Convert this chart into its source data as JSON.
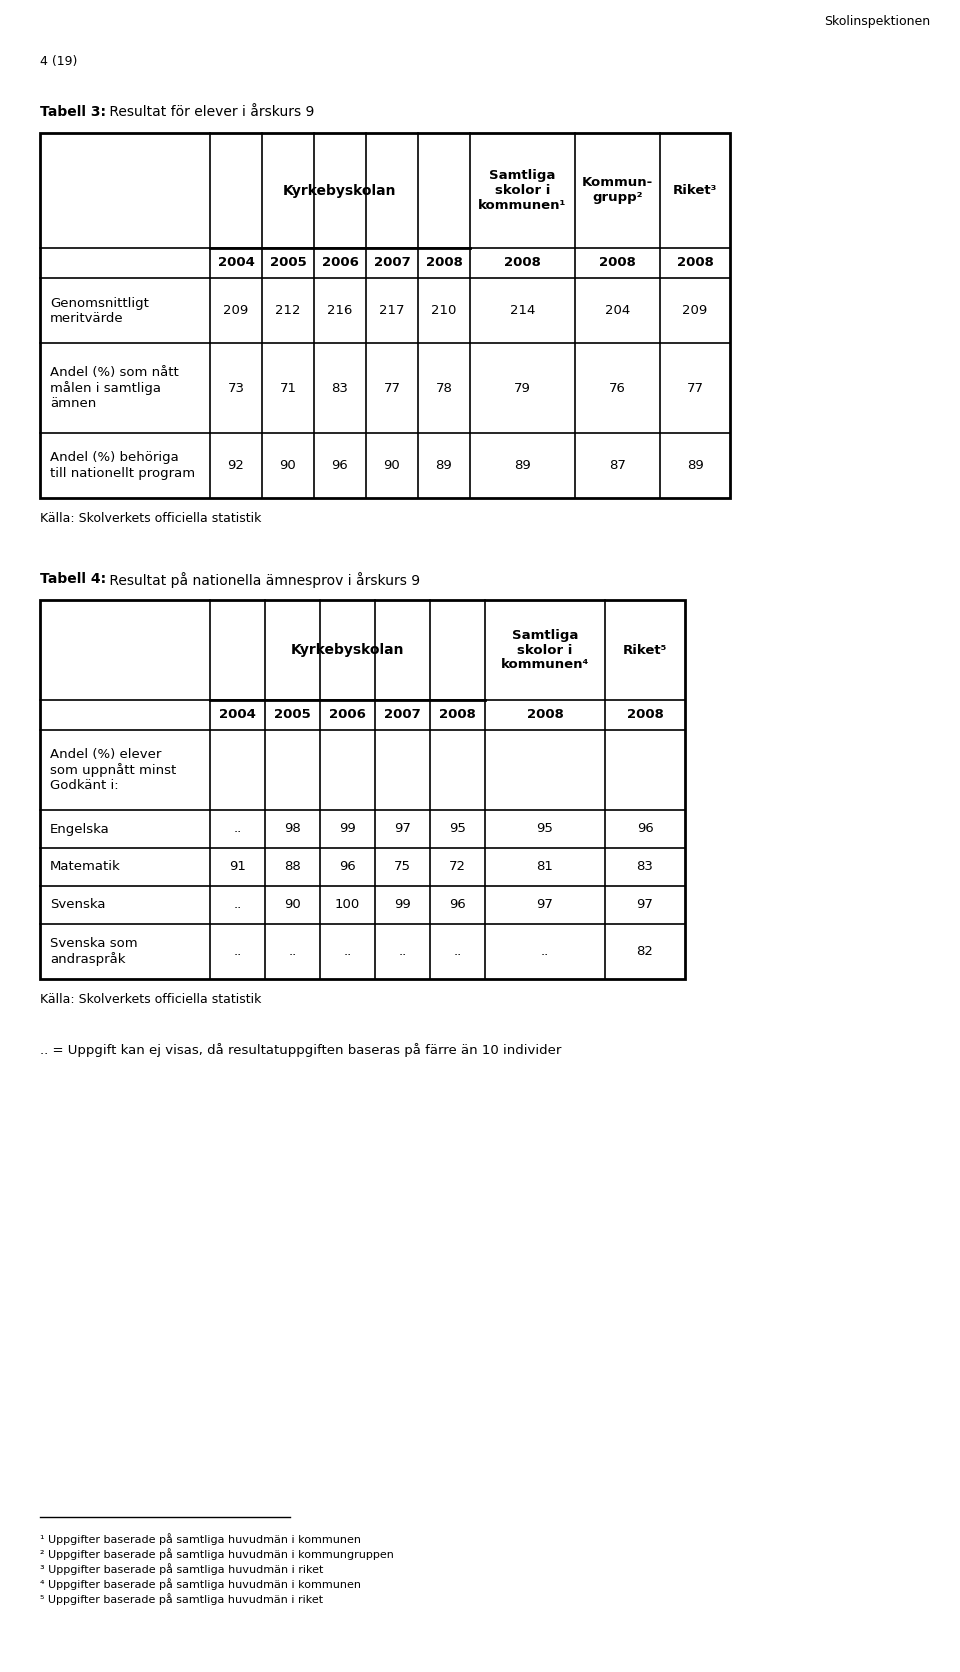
{
  "page_label": "4 (19)",
  "skolinspektionen": "Skolinspektionen",
  "table3_title_bold": "Tabell 3:",
  "table3_title_rest": " Resultat för elever i årskurs 9",
  "table3_rows": [
    {
      "label": "Genomsnittligt\nmeritvärde",
      "values": [
        "209",
        "212",
        "216",
        "217",
        "210",
        "214",
        "204",
        "209"
      ]
    },
    {
      "label": "Andel (%) som nått\nmålen i samtliga\nämnen",
      "values": [
        "73",
        "71",
        "83",
        "77",
        "78",
        "79",
        "76",
        "77"
      ]
    },
    {
      "label": "Andel (%) behöriga\ntill nationellt program",
      "values": [
        "92",
        "90",
        "96",
        "90",
        "89",
        "89",
        "87",
        "89"
      ]
    }
  ],
  "table3_source": "Källa: Skolverkets officiella statistik",
  "table4_title_bold": "Tabell 4:",
  "table4_title_rest": " Resultat på nationella ämnesprov i årskurs 9",
  "table4_rows": [
    {
      "label": "Andel (%) elever\nsom uppnått minst\nGodkänt i:",
      "values": [
        "",
        "",
        "",
        "",
        "",
        "",
        ""
      ]
    },
    {
      "label": "Engelska",
      "values": [
        "..",
        "98",
        "99",
        "97",
        "95",
        "95",
        "96"
      ]
    },
    {
      "label": "Matematik",
      "values": [
        "91",
        "88",
        "96",
        "75",
        "72",
        "81",
        "83"
      ]
    },
    {
      "label": "Svenska",
      "values": [
        "..",
        "90",
        "100",
        "99",
        "96",
        "97",
        "97"
      ]
    },
    {
      "label": "Svenska som\nandraspråk",
      "values": [
        "..",
        "..",
        "..",
        "..",
        "..",
        "..",
        "82"
      ]
    }
  ],
  "table4_source": "Källa: Skolverkets officiella statistik",
  "dotdot_note": ".. = Uppgift kan ej visas, då resultatuppgiften baseras på färre än 10 individer",
  "footnotes": [
    "¹ Uppgifter baserade på samtliga huvudmän i kommunen",
    "² Uppgifter baserade på samtliga huvudmän i kommungruppen",
    "³ Uppgifter baserade på samtliga huvudmän i riket",
    "⁴ Uppgifter baserade på samtliga huvudmän i kommunen",
    "⁵ Uppgifter baserade på samtliga huvudmän i riket"
  ],
  "bg_color": "#ffffff",
  "text_color": "#000000"
}
